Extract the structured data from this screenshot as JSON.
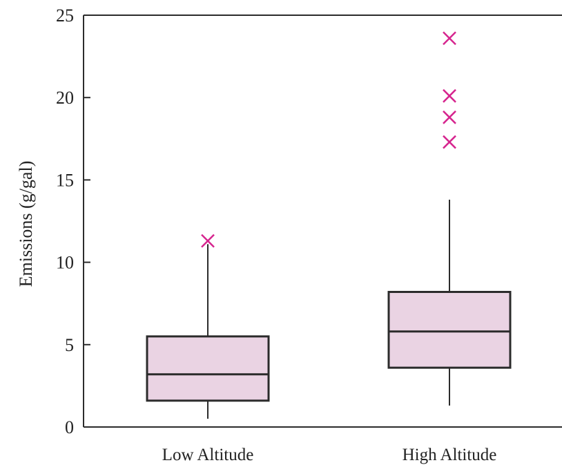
{
  "chart_data": {
    "type": "box",
    "ylabel": "Emissions (g/gal)",
    "xlabel": "",
    "ylim": [
      0,
      25
    ],
    "yticks": [
      0,
      5,
      10,
      15,
      20,
      25
    ],
    "ytick_labels": [
      "0",
      "5",
      "10",
      "15",
      "20",
      "25"
    ],
    "categories": [
      "Low Altitude",
      "High Altitude"
    ],
    "boxes": [
      {
        "category": "Low Altitude",
        "whisker_low": 0.5,
        "q1": 1.6,
        "median": 3.2,
        "q3": 5.5,
        "whisker_high": 11.1,
        "outliers": [
          11.3
        ]
      },
      {
        "category": "High Altitude",
        "whisker_low": 1.3,
        "q1": 3.6,
        "median": 5.8,
        "q3": 8.2,
        "whisker_high": 13.8,
        "outliers": [
          17.3,
          18.8,
          20.1,
          23.6
        ]
      }
    ],
    "grid": false,
    "colors": {
      "box_fill": "#ead3e3",
      "box_edge": "#2b2b2b",
      "outlier": "#d6248e",
      "axis": "#2b2b2b"
    }
  }
}
